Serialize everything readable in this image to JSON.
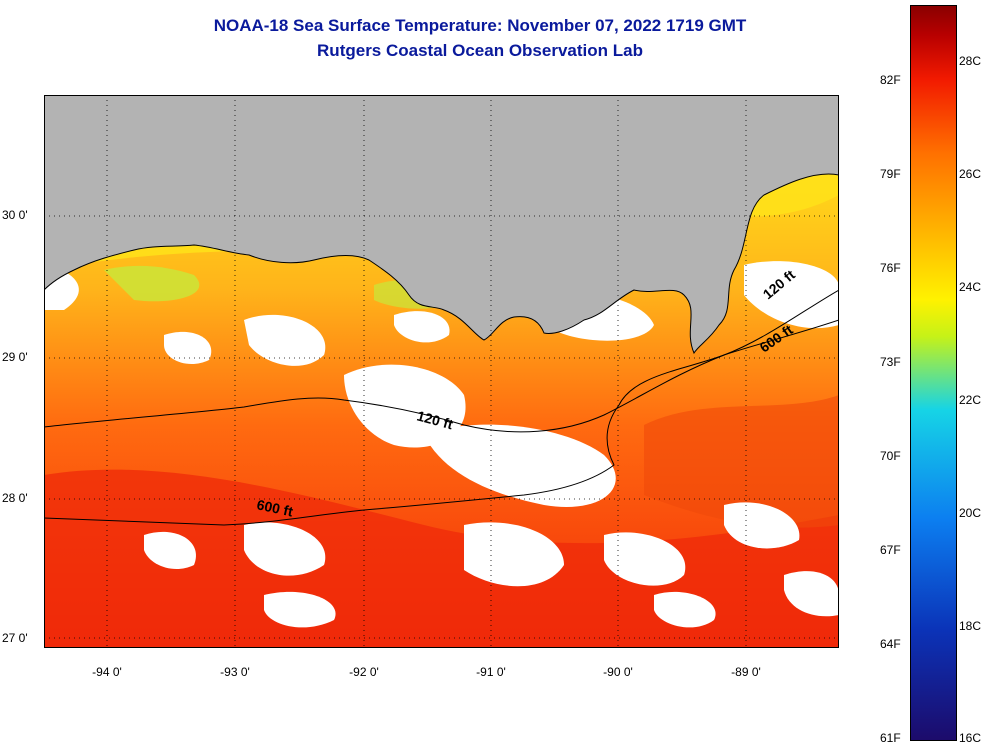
{
  "title_line1": "NOAA-18 Sea Surface Temperature:  November 07, 2022 1719 GMT",
  "title_line2": "Rutgers Coastal Ocean Observation Lab",
  "lat_labels": [
    {
      "deg": 30,
      "text": "30 0'"
    },
    {
      "deg": 29,
      "text": "29 0'"
    },
    {
      "deg": 28,
      "text": "28 0'"
    },
    {
      "deg": 27,
      "text": "27 0'"
    }
  ],
  "lon_labels": [
    {
      "deg": -94,
      "text": "-94 0'"
    },
    {
      "deg": -93,
      "text": "-93 0'"
    },
    {
      "deg": -92,
      "text": "-92 0'"
    },
    {
      "deg": -91,
      "text": "-91 0'"
    },
    {
      "deg": -90,
      "text": "-90 0'"
    },
    {
      "deg": -89,
      "text": "-89 0'"
    }
  ],
  "contour_labels": [
    {
      "text": "120 ft"
    },
    {
      "text": "600 ft"
    },
    {
      "text": "120 ft"
    },
    {
      "text": "600 ft"
    }
  ],
  "colorbar": {
    "fahrenheit": [
      {
        "value": 82,
        "text": "82F"
      },
      {
        "value": 79,
        "text": "79F"
      },
      {
        "value": 76,
        "text": "76F"
      },
      {
        "value": 73,
        "text": "73F"
      },
      {
        "value": 70,
        "text": "70F"
      },
      {
        "value": 67,
        "text": "67F"
      },
      {
        "value": 64,
        "text": "64F"
      },
      {
        "value": 61,
        "text": "61F"
      }
    ],
    "celsius": [
      {
        "value": 28,
        "text": "28C"
      },
      {
        "value": 26,
        "text": "26C"
      },
      {
        "value": 24,
        "text": "24C"
      },
      {
        "value": 22,
        "text": "22C"
      },
      {
        "value": 20,
        "text": "20C"
      },
      {
        "value": 18,
        "text": "18C"
      },
      {
        "value": 16,
        "text": "16C"
      }
    ]
  },
  "colors": {
    "title": "#0a1a9c",
    "land": "#b3b3b3",
    "no_data": "#ffffff",
    "warm": "#f23a0a",
    "mid": "#ff8a10",
    "cool": "#ffe020"
  }
}
